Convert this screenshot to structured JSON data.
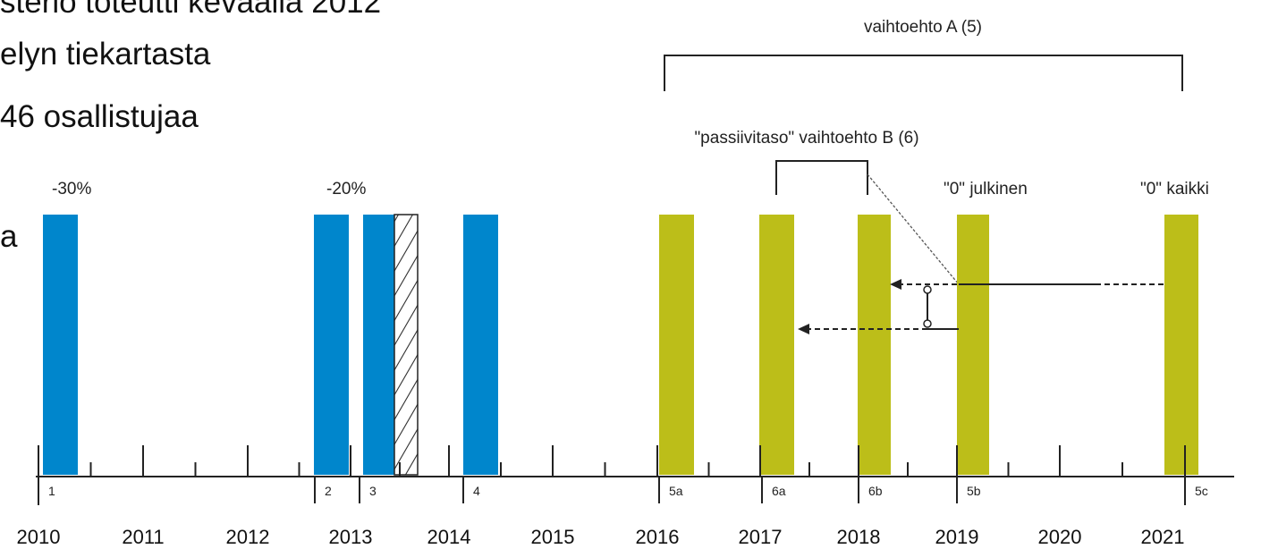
{
  "slide": {
    "lines": [
      "sterio toteutti keväällä 2012",
      "elyn tiekartasta",
      "46 osallistujaa",
      "a"
    ]
  },
  "diagram": {
    "bracket_a": "vaihtoehto A (5)",
    "bracket_b": "\"passiivitaso\" vaihtoehto B (6)",
    "annotations": [
      "-30%",
      "-20%",
      "\"0\" julkinen",
      "\"0\" kaikki"
    ],
    "bars": [
      "1",
      "2",
      "3",
      "4",
      "5a",
      "6a",
      "6b",
      "5b",
      "5c"
    ],
    "years": [
      "2010",
      "2011",
      "2012",
      "2013",
      "2014",
      "2015",
      "2016",
      "2017",
      "2018",
      "2019",
      "2020",
      "2021"
    ]
  }
}
